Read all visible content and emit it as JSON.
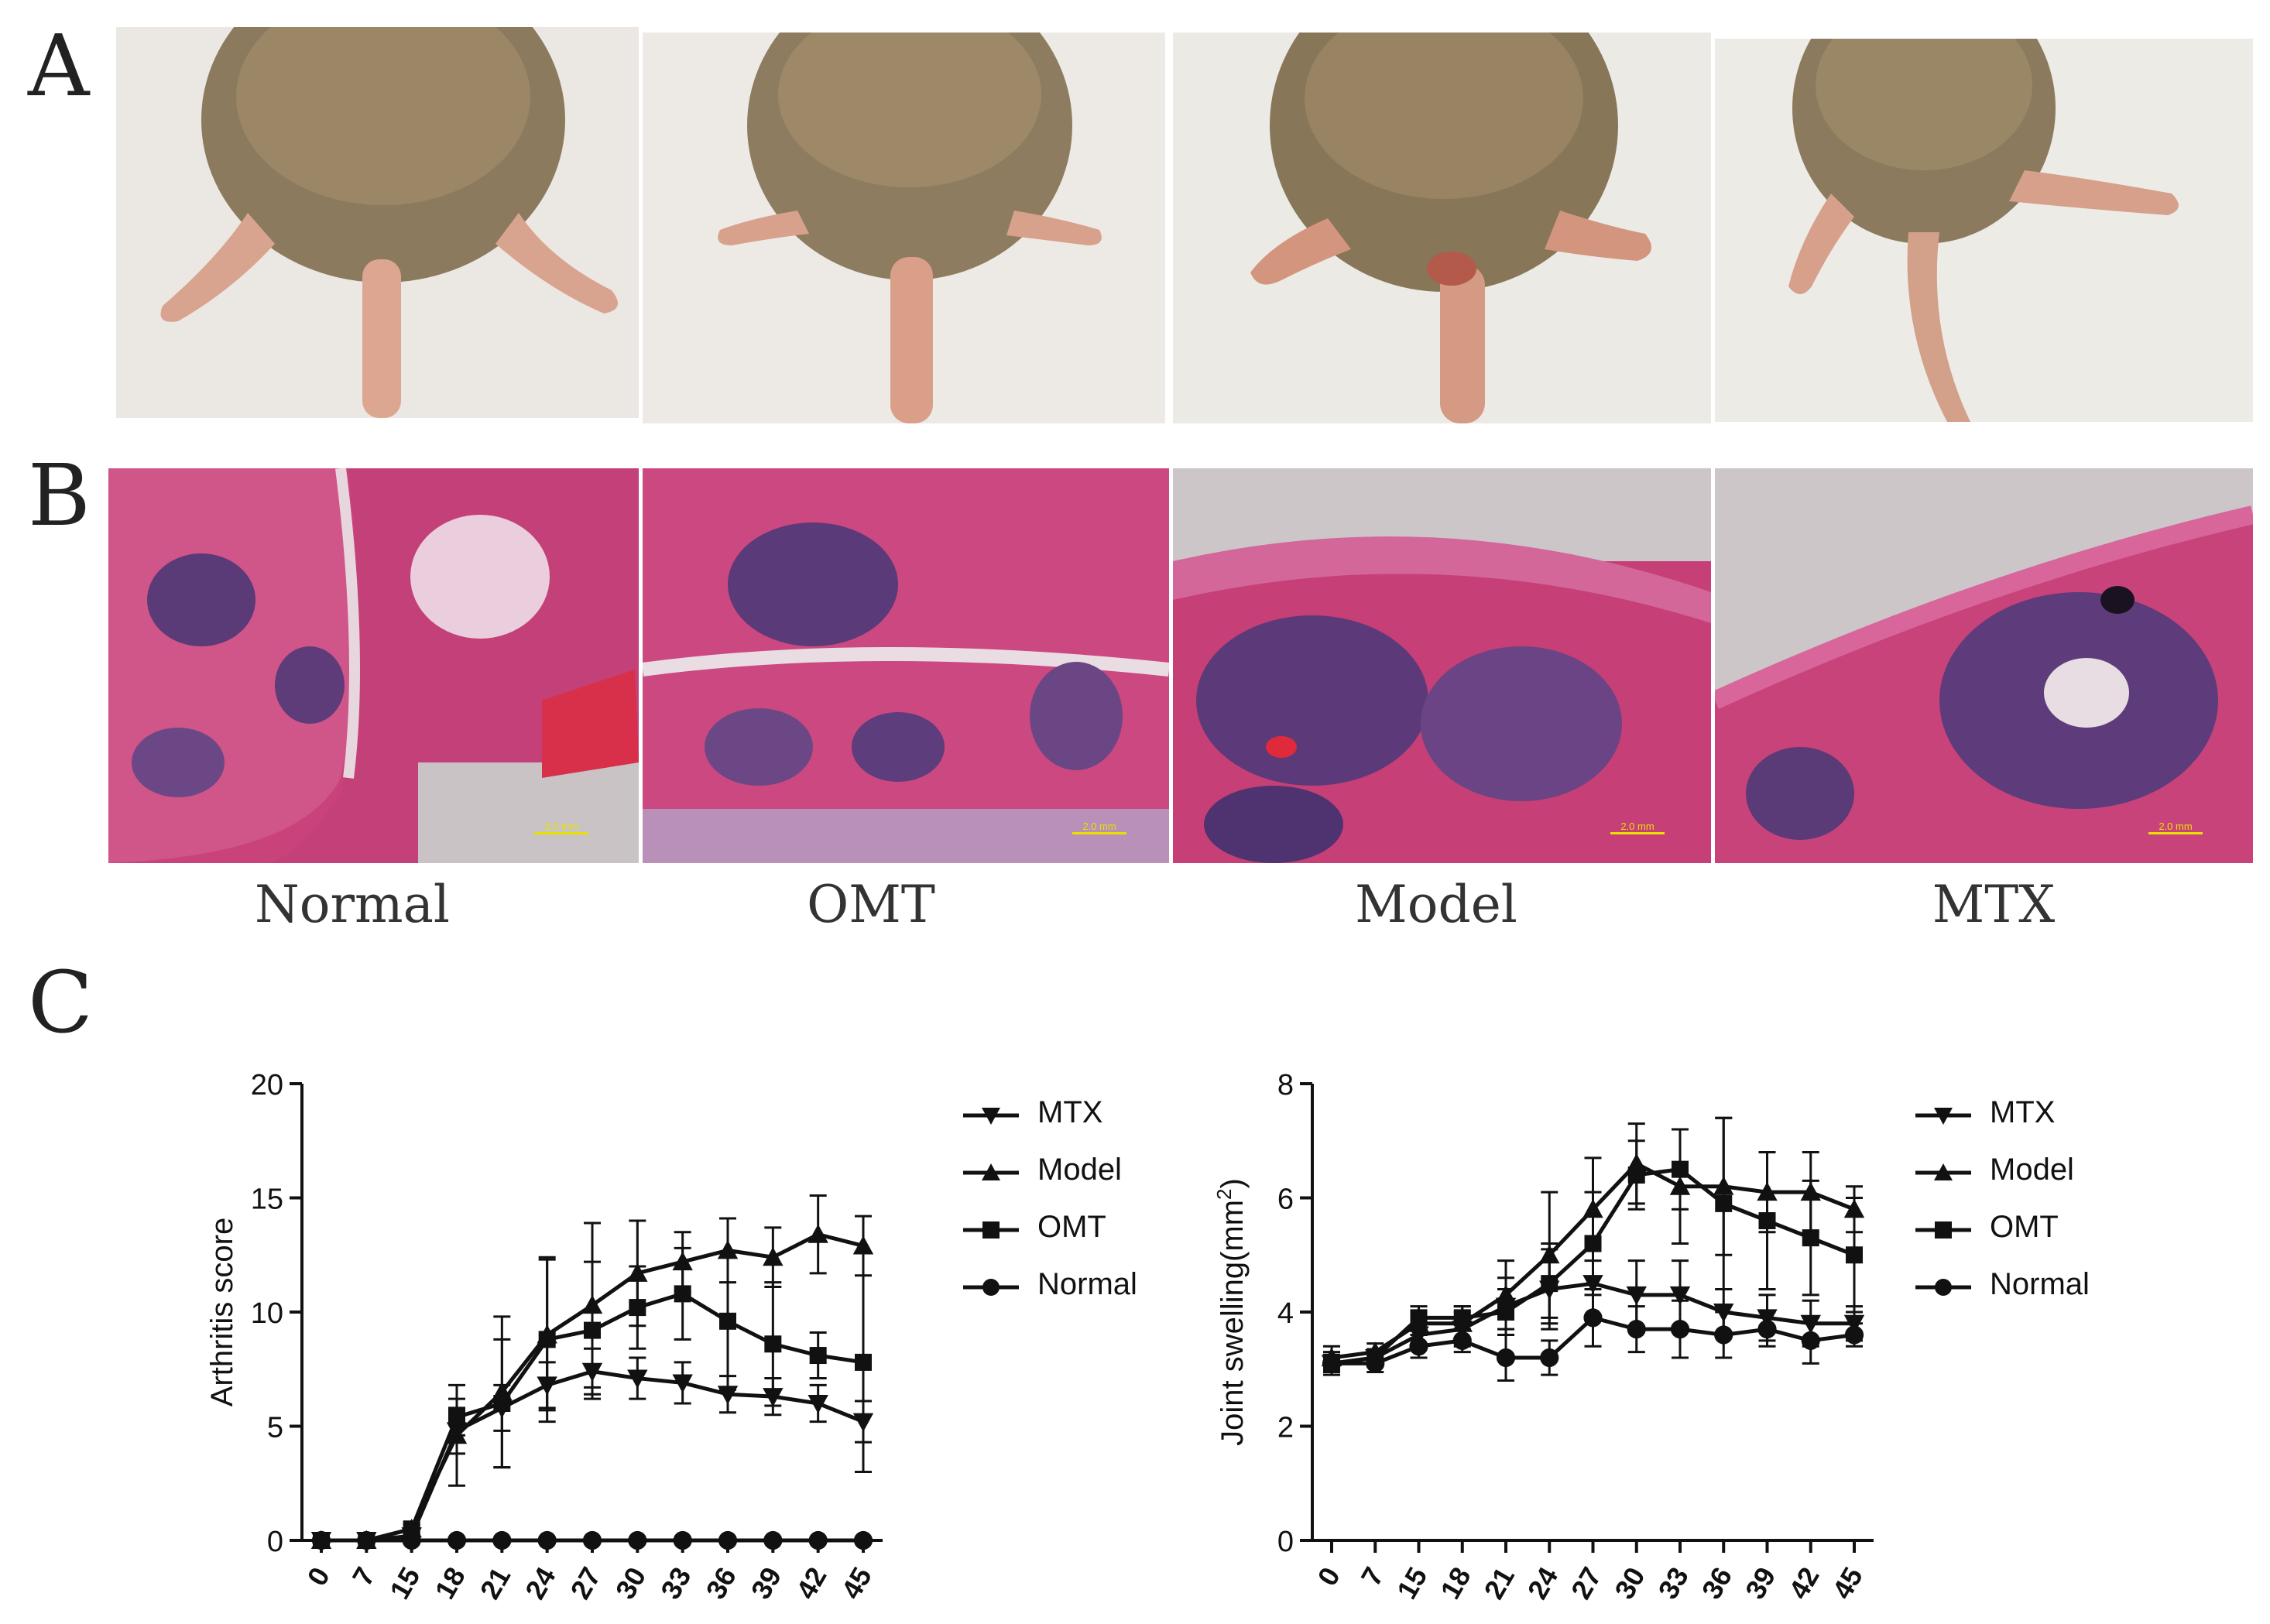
{
  "panels": {
    "a": "A",
    "b": "B",
    "c": "C"
  },
  "groups": [
    "Normal",
    "OMT",
    "Model",
    "MTX"
  ],
  "scale_bar_label": "2.0 mm",
  "colors": {
    "line": "#111111",
    "he_pink": "#c9437a",
    "he_purple": "#4a2f6e",
    "fur": "#8c7a5e",
    "paper": "#ece9e4"
  },
  "chart_data": [
    {
      "type": "line",
      "ylabel": "Arthritis score",
      "xlabel": "",
      "x": [
        "0",
        "7",
        "15",
        "18",
        "21",
        "24",
        "27",
        "30",
        "33",
        "36",
        "39",
        "42",
        "45"
      ],
      "ylim": [
        0,
        20
      ],
      "yticks": [
        0,
        5,
        10,
        15,
        20
      ],
      "legend_position": "right",
      "series": [
        {
          "name": "MTX",
          "marker": "triangle-down",
          "values": [
            0,
            0,
            0.2,
            4.8,
            5.8,
            6.8,
            7.4,
            7.1,
            6.9,
            6.4,
            6.3,
            6.0,
            5.2
          ],
          "error": [
            0,
            0,
            0.2,
            1.0,
            1.0,
            1.0,
            1.0,
            0.9,
            0.9,
            0.8,
            0.8,
            0.8,
            0.9
          ]
        },
        {
          "name": "Model",
          "marker": "triangle-up",
          "values": [
            0,
            0,
            0.5,
            4.6,
            6.5,
            9.0,
            10.3,
            11.7,
            12.2,
            12.7,
            12.4,
            13.4,
            12.9
          ],
          "error": [
            0,
            0,
            0.2,
            2.2,
            3.3,
            3.3,
            3.6,
            2.3,
            1.3,
            1.4,
            1.3,
            1.7,
            1.3
          ]
        },
        {
          "name": "OMT",
          "marker": "square",
          "values": [
            0,
            0,
            0.5,
            5.4,
            6.0,
            8.8,
            9.2,
            10.2,
            10.8,
            9.6,
            8.6,
            8.1,
            7.8
          ],
          "error": [
            0,
            0,
            0.2,
            0.8,
            2.8,
            3.6,
            3.0,
            1.8,
            2.0,
            3.0,
            2.7,
            1.0,
            4.8
          ]
        },
        {
          "name": "Normal",
          "marker": "circle",
          "values": [
            0,
            0,
            0,
            0,
            0,
            0,
            0,
            0,
            0,
            0,
            0,
            0,
            0
          ],
          "error": [
            0,
            0,
            0,
            0,
            0,
            0,
            0,
            0,
            0,
            0,
            0,
            0,
            0
          ]
        }
      ]
    },
    {
      "type": "line",
      "ylabel": "Joint swelling(mm",
      "ylabel_sup": "2",
      "ylabel_end": ")",
      "xlabel": "",
      "x": [
        "0",
        "7",
        "15",
        "18",
        "21",
        "24",
        "27",
        "30",
        "33",
        "36",
        "39",
        "42",
        "45"
      ],
      "ylim": [
        0,
        8
      ],
      "yticks": [
        0,
        2,
        4,
        6,
        8
      ],
      "legend_position": "right",
      "series": [
        {
          "name": "MTX",
          "marker": "triangle-down",
          "values": [
            3.1,
            3.2,
            3.6,
            3.7,
            4.1,
            4.4,
            4.5,
            4.3,
            4.3,
            4.0,
            3.9,
            3.8,
            3.8
          ],
          "error": [
            0.15,
            0.15,
            0.2,
            0.3,
            0.5,
            0.7,
            0.6,
            0.6,
            0.6,
            0.4,
            0.4,
            0.4,
            0.3
          ]
        },
        {
          "name": "Model",
          "marker": "triangle-up",
          "values": [
            3.2,
            3.3,
            3.8,
            3.8,
            4.3,
            5.0,
            5.8,
            6.6,
            6.2,
            6.2,
            6.1,
            6.1,
            5.8
          ],
          "error": [
            0.2,
            0.15,
            0.2,
            0.3,
            0.6,
            1.1,
            0.9,
            0.7,
            1.0,
            1.2,
            0.7,
            0.7,
            0.4
          ]
        },
        {
          "name": "OMT",
          "marker": "square",
          "values": [
            3.1,
            3.2,
            3.9,
            3.9,
            4.0,
            4.5,
            5.2,
            6.4,
            6.5,
            5.9,
            5.6,
            5.3,
            5.0
          ],
          "error": [
            0.2,
            0.15,
            0.2,
            0.2,
            0.4,
            0.7,
            0.9,
            0.6,
            0.7,
            1.5,
            1.2,
            1.0,
            1.0
          ]
        },
        {
          "name": "Normal",
          "marker": "circle",
          "values": [
            3.1,
            3.1,
            3.4,
            3.5,
            3.2,
            3.2,
            3.9,
            3.7,
            3.7,
            3.6,
            3.7,
            3.5,
            3.6
          ],
          "error": [
            0.15,
            0.15,
            0.2,
            0.2,
            0.4,
            0.3,
            0.5,
            0.4,
            0.5,
            0.4,
            0.3,
            0.4,
            0.2
          ]
        }
      ]
    }
  ]
}
